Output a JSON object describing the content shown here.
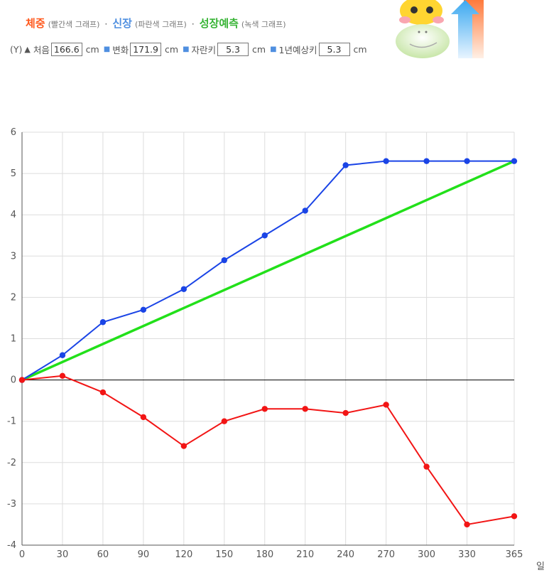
{
  "legend": {
    "weight_label": "체중",
    "weight_note": "(빨간색 그래프)",
    "height_label": "신장",
    "height_note": "(파란색 그래프)",
    "growth_label": "성장예측",
    "growth_note": "(녹색 그래프)",
    "separator": "·"
  },
  "form": {
    "y_label": "(Y)",
    "initial_label": "처음",
    "initial_value": "166.6",
    "initial_unit": "cm",
    "change_label": "변화",
    "change_value": "171.9",
    "change_unit": "cm",
    "grown_label": "자란키",
    "grown_value": "5.3",
    "grown_unit": "cm",
    "expected_label": "1년예상키",
    "expected_value": "5.3",
    "expected_unit": "cm"
  },
  "colors": {
    "weight": "#f21515",
    "height": "#1a44e6",
    "growth": "#22e01a"
  },
  "chart_data": {
    "type": "line",
    "x": [
      0,
      30,
      60,
      90,
      120,
      150,
      180,
      210,
      240,
      270,
      300,
      330,
      365
    ],
    "x_unit_label": "일",
    "ylim": [
      -4,
      6
    ],
    "xlim": [
      0,
      365
    ],
    "y_ticks": [
      "6",
      "5",
      "4",
      "3",
      "2",
      "1",
      "0",
      "-1",
      "-2",
      "-3",
      "-4"
    ],
    "x_ticks": [
      "0",
      "30",
      "60",
      "90",
      "120",
      "150",
      "180",
      "210",
      "240",
      "270",
      "300",
      "330",
      "365"
    ],
    "grid": true,
    "series": [
      {
        "key": "height",
        "values": [
          0,
          0.6,
          1.4,
          1.7,
          2.2,
          2.9,
          3.5,
          4.1,
          5.2,
          5.3,
          5.3,
          5.3,
          5.3
        ],
        "markers": true
      },
      {
        "key": "weight",
        "values": [
          0,
          0.1,
          -0.3,
          -0.9,
          -1.6,
          -1.0,
          -0.7,
          -0.7,
          -0.8,
          -0.6,
          -2.1,
          -3.5,
          -3.3
        ],
        "markers": true
      },
      {
        "key": "growth",
        "values": [
          0,
          5.3
        ],
        "x": [
          0,
          365
        ],
        "markers": false
      }
    ]
  }
}
